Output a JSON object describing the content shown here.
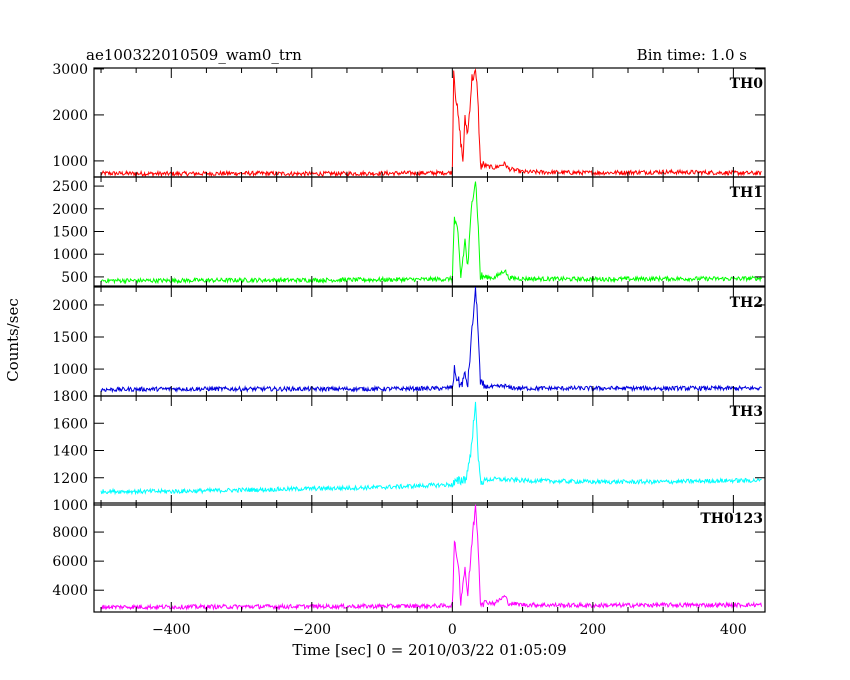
{
  "header": {
    "left_title": "ae100322010509_wam0_trn",
    "right_title": "Bin time: 1.0 s"
  },
  "chart_data": {
    "type": "line",
    "xlabel": "Time [sec] 0 = 2010/03/22 01:05:09",
    "ylabel": "Counts/sec",
    "xlim": [
      -510,
      445
    ],
    "xticks": [
      -400,
      -200,
      0,
      200,
      400
    ],
    "grid": false,
    "bin_time_s": 1.0,
    "panels": [
      {
        "name": "TH0",
        "color": "#ff0000",
        "ylim": [
          650,
          3020
        ],
        "yticks": [
          1000,
          2000,
          3000
        ],
        "series_x": [
          -500,
          -400,
          -300,
          -200,
          -100,
          -10,
          0,
          2,
          5,
          10,
          15,
          18,
          22,
          28,
          33,
          36,
          40,
          45,
          60,
          75,
          80,
          100,
          200,
          300,
          400,
          440
        ],
        "series_y": [
          730,
          720,
          730,
          720,
          730,
          740,
          750,
          3000,
          2400,
          1700,
          1000,
          1900,
          1600,
          2800,
          2900,
          2500,
          900,
          900,
          850,
          940,
          830,
          760,
          740,
          760,
          740,
          730
        ]
      },
      {
        "name": "TH1",
        "color": "#00ff00",
        "ylim": [
          300,
          2700
        ],
        "yticks": [
          500,
          1000,
          1500,
          2000,
          2500
        ],
        "series_x": [
          -500,
          -400,
          -300,
          -200,
          -100,
          -10,
          0,
          3,
          8,
          12,
          18,
          22,
          28,
          33,
          36,
          40,
          45,
          60,
          75,
          80,
          100,
          200,
          300,
          400,
          440
        ],
        "series_y": [
          420,
          420,
          430,
          430,
          440,
          450,
          460,
          1800,
          1400,
          500,
          1300,
          700,
          2200,
          2650,
          1900,
          500,
          500,
          480,
          650,
          480,
          460,
          450,
          460,
          460,
          470
        ]
      },
      {
        "name": "TH2",
        "color": "#0000dd",
        "ylim": [
          580,
          2280
        ],
        "yticks": [
          1000,
          1500,
          2000
        ],
        "series_x": [
          -500,
          -400,
          -300,
          -200,
          -100,
          -10,
          0,
          3,
          8,
          12,
          18,
          22,
          28,
          33,
          36,
          40,
          45,
          60,
          75,
          80,
          100,
          200,
          300,
          400,
          440
        ],
        "series_y": [
          680,
          690,
          690,
          690,
          690,
          700,
          720,
          980,
          820,
          740,
          900,
          760,
          1600,
          2250,
          1800,
          760,
          730,
          720,
          740,
          710,
          700,
          700,
          700,
          700,
          700
        ]
      },
      {
        "name": "TH3",
        "color": "#00ffff",
        "ylim": [
          1000,
          1800
        ],
        "yticks": [
          1000,
          1200,
          1400,
          1600,
          1800
        ],
        "series_x": [
          -500,
          -400,
          -300,
          -200,
          -100,
          0,
          20,
          28,
          33,
          36,
          40,
          60,
          100,
          200,
          300,
          400,
          440
        ],
        "series_y": [
          1100,
          1100,
          1110,
          1120,
          1130,
          1150,
          1200,
          1450,
          1790,
          1400,
          1180,
          1190,
          1180,
          1170,
          1170,
          1180,
          1180
        ]
      },
      {
        "name": "TH0123",
        "color": "#ff00ff",
        "ylim": [
          2500,
          10000
        ],
        "yticks": [
          4000,
          6000,
          8000
        ],
        "series_x": [
          -500,
          -400,
          -300,
          -200,
          -100,
          -10,
          0,
          3,
          8,
          12,
          18,
          22,
          28,
          33,
          36,
          40,
          45,
          60,
          75,
          80,
          100,
          200,
          300,
          400,
          440
        ],
        "series_y": [
          2850,
          2850,
          2870,
          2880,
          2900,
          2920,
          2950,
          7100,
          6100,
          3300,
          5600,
          3600,
          7400,
          9800,
          8000,
          3300,
          3200,
          3100,
          3600,
          3100,
          3000,
          2950,
          2980,
          2980,
          3000
        ]
      }
    ]
  }
}
